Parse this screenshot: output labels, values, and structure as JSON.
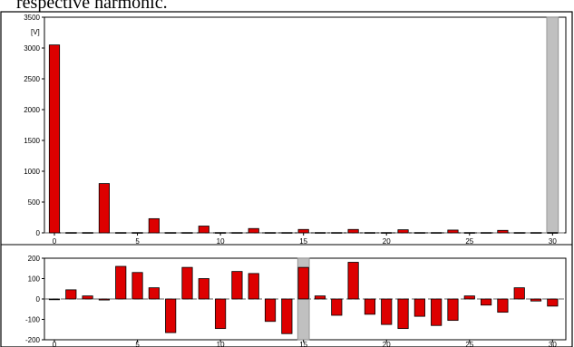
{
  "caption": "respective harmonic.",
  "chart_data": [
    {
      "type": "bar",
      "name": "top",
      "unit_label": "[V]",
      "ylim": [
        0,
        3500
      ],
      "yticks": [
        0,
        500,
        1000,
        1500,
        2000,
        2500,
        3000,
        3500
      ],
      "xlim": [
        -0.6,
        30.8
      ],
      "xticks": [
        0,
        5,
        10,
        15,
        20,
        25,
        30
      ],
      "cursor_x": 30,
      "bar_color": "#dd0000",
      "categories": [
        0,
        1,
        2,
        3,
        4,
        5,
        6,
        7,
        8,
        9,
        10,
        11,
        12,
        13,
        14,
        15,
        16,
        17,
        18,
        19,
        20,
        21,
        22,
        23,
        24,
        25,
        26,
        27,
        28,
        29,
        30
      ],
      "values": [
        3050,
        5,
        5,
        800,
        5,
        5,
        230,
        5,
        5,
        110,
        5,
        5,
        70,
        5,
        5,
        55,
        5,
        5,
        55,
        5,
        5,
        50,
        5,
        5,
        45,
        5,
        5,
        40,
        5,
        5,
        5
      ]
    },
    {
      "type": "bar",
      "name": "bottom",
      "ylim": [
        -200,
        200
      ],
      "yticks": [
        -200,
        -100,
        0,
        100,
        200
      ],
      "xlim": [
        -0.6,
        30.8
      ],
      "xticks": [
        0,
        5,
        10,
        15,
        20,
        25,
        30
      ],
      "cursor_x": 15,
      "bar_color": "#dd0000",
      "categories": [
        0,
        1,
        2,
        3,
        4,
        5,
        6,
        7,
        8,
        9,
        10,
        11,
        12,
        13,
        14,
        15,
        16,
        17,
        18,
        19,
        20,
        21,
        22,
        23,
        24,
        25,
        26,
        27,
        28,
        29,
        30
      ],
      "values": [
        0,
        45,
        15,
        -5,
        160,
        130,
        55,
        -165,
        155,
        100,
        -145,
        135,
        125,
        -110,
        -170,
        155,
        15,
        -80,
        180,
        -75,
        -125,
        -145,
        -85,
        -130,
        -105,
        15,
        -30,
        -65,
        55,
        -10,
        -35
      ]
    }
  ]
}
